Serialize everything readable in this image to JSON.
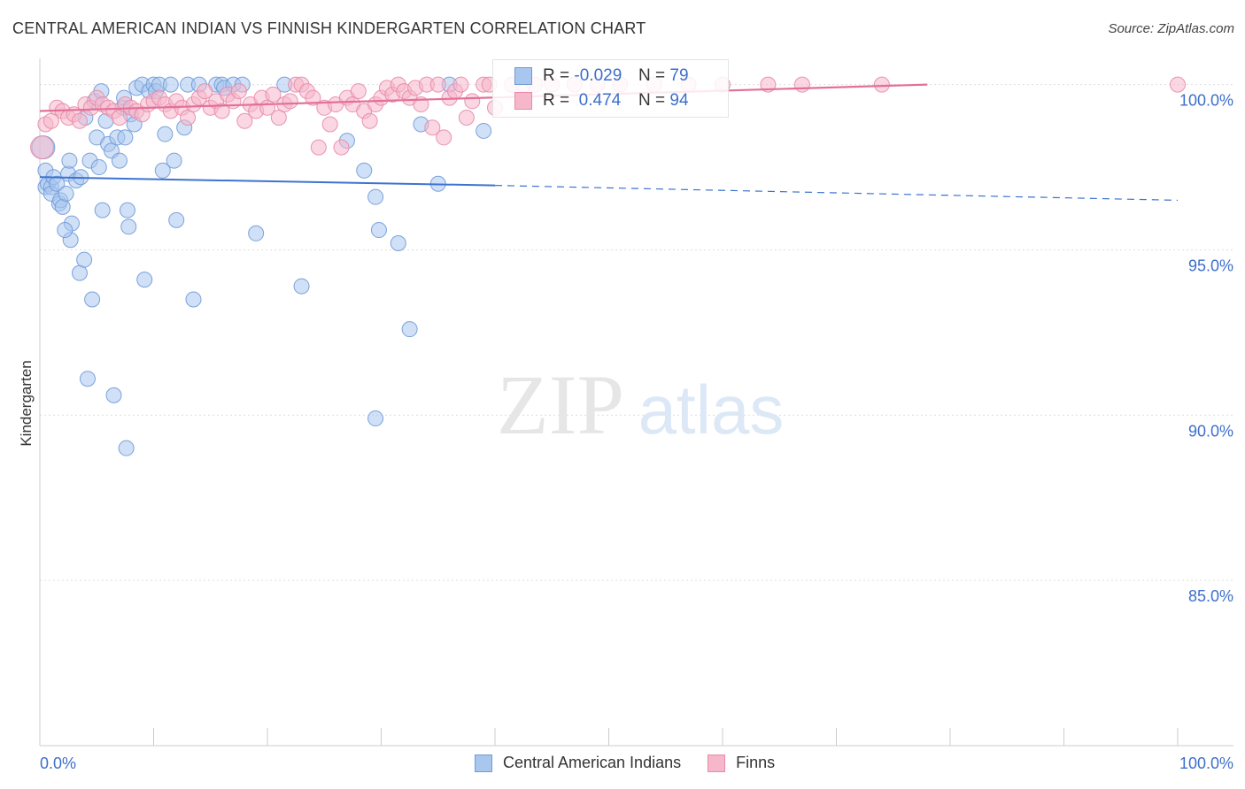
{
  "title": "CENTRAL AMERICAN INDIAN VS FINNISH KINDERGARTEN CORRELATION CHART",
  "source": "Source: ZipAtlas.com",
  "watermark": {
    "zip": "ZIP",
    "atlas": "atlas"
  },
  "colors": {
    "blue_fill": "#a9c6ef",
    "blue_stroke": "#6f9ad8",
    "blue_line": "#3d73d0",
    "pink_fill": "#f6b7cb",
    "pink_stroke": "#e88aa8",
    "pink_line": "#e2709a",
    "tick_label": "#3d6fcc",
    "grid": "#dddddd"
  },
  "legend_stats": [
    {
      "r_label": "R =",
      "r_value": "-0.029",
      "n_label": "N =",
      "n_value": "79"
    },
    {
      "r_label": "R =",
      "r_value": "0.474",
      "n_label": "N =",
      "n_value": "94"
    }
  ],
  "chart_data": {
    "type": "scatter",
    "ylabel": "Kindergarten",
    "x_tick_labels": [
      "0.0%",
      "100.0%"
    ],
    "y_tick_labels": [
      "100.0%",
      "95.0%",
      "90.0%",
      "85.0%"
    ],
    "xlim": [
      0,
      100
    ],
    "ylim": [
      80.0,
      100.9
    ],
    "y_ticks": [
      100,
      95,
      90,
      85
    ],
    "series": [
      {
        "name": "Central American Indians",
        "trend": {
          "x0": 0,
          "y0": 97.2,
          "x1": 40,
          "y1": 96.95,
          "x_end": 100,
          "y_end": 96.5
        },
        "points": [
          [
            0.3,
            98.1
          ],
          [
            0.5,
            97.4
          ],
          [
            0.5,
            96.9
          ],
          [
            0.7,
            97.0
          ],
          [
            1.0,
            96.9
          ],
          [
            1.0,
            96.7
          ],
          [
            1.2,
            97.2
          ],
          [
            1.5,
            97.0
          ],
          [
            1.7,
            96.4
          ],
          [
            1.8,
            96.5
          ],
          [
            2.0,
            96.3
          ],
          [
            2.3,
            96.7
          ],
          [
            2.5,
            97.3
          ],
          [
            2.6,
            97.7
          ],
          [
            2.7,
            95.3
          ],
          [
            2.8,
            95.8
          ],
          [
            2.2,
            95.6
          ],
          [
            3.2,
            97.1
          ],
          [
            3.6,
            97.2
          ],
          [
            3.5,
            94.3
          ],
          [
            3.9,
            94.7
          ],
          [
            4.0,
            99.0
          ],
          [
            4.2,
            91.1
          ],
          [
            4.4,
            97.7
          ],
          [
            4.6,
            93.5
          ],
          [
            4.8,
            99.5
          ],
          [
            5.0,
            98.4
          ],
          [
            5.2,
            97.5
          ],
          [
            5.4,
            99.8
          ],
          [
            5.5,
            96.2
          ],
          [
            5.8,
            98.9
          ],
          [
            6.0,
            98.2
          ],
          [
            6.3,
            98.0
          ],
          [
            6.5,
            90.6
          ],
          [
            6.8,
            98.4
          ],
          [
            7.0,
            97.7
          ],
          [
            7.3,
            99.3
          ],
          [
            7.5,
            98.4
          ],
          [
            7.7,
            96.2
          ],
          [
            7.4,
            99.6
          ],
          [
            7.6,
            89.0
          ],
          [
            7.8,
            95.7
          ],
          [
            8.0,
            99.1
          ],
          [
            8.3,
            98.8
          ],
          [
            8.5,
            99.9
          ],
          [
            9.0,
            100.0
          ],
          [
            9.2,
            94.1
          ],
          [
            9.6,
            99.8
          ],
          [
            10.0,
            100.0
          ],
          [
            10.2,
            99.8
          ],
          [
            10.5,
            100.0
          ],
          [
            10.8,
            97.4
          ],
          [
            11.0,
            98.5
          ],
          [
            11.5,
            100.0
          ],
          [
            11.8,
            97.7
          ],
          [
            12.0,
            95.9
          ],
          [
            12.7,
            98.7
          ],
          [
            13.0,
            100.0
          ],
          [
            13.5,
            93.5
          ],
          [
            14.0,
            100.0
          ],
          [
            15.5,
            100.0
          ],
          [
            16.0,
            100.0
          ],
          [
            16.2,
            99.9
          ],
          [
            17.0,
            100.0
          ],
          [
            17.8,
            100.0
          ],
          [
            19.0,
            95.5
          ],
          [
            21.5,
            100.0
          ],
          [
            23.0,
            93.9
          ],
          [
            27.0,
            98.3
          ],
          [
            28.5,
            97.4
          ],
          [
            29.5,
            89.9
          ],
          [
            29.5,
            96.6
          ],
          [
            29.8,
            95.6
          ],
          [
            31.5,
            95.2
          ],
          [
            32.5,
            92.6
          ],
          [
            33.5,
            98.8
          ],
          [
            35.0,
            97.0
          ],
          [
            36.0,
            100.0
          ],
          [
            39.0,
            98.6
          ]
        ]
      },
      {
        "name": "Finns",
        "trend": {
          "x0": 0,
          "y0": 99.2,
          "x1": 78,
          "y1": 100.0
        },
        "points": [
          [
            0.2,
            98.1
          ],
          [
            0.5,
            98.8
          ],
          [
            1.0,
            98.9
          ],
          [
            1.5,
            99.3
          ],
          [
            2.0,
            99.2
          ],
          [
            2.5,
            99.0
          ],
          [
            3.0,
            99.1
          ],
          [
            3.5,
            98.9
          ],
          [
            4.0,
            99.4
          ],
          [
            4.5,
            99.3
          ],
          [
            5.0,
            99.6
          ],
          [
            5.5,
            99.4
          ],
          [
            6.0,
            99.3
          ],
          [
            6.5,
            99.2
          ],
          [
            7.0,
            99.0
          ],
          [
            7.5,
            99.4
          ],
          [
            8.0,
            99.3
          ],
          [
            8.5,
            99.2
          ],
          [
            9.0,
            99.1
          ],
          [
            9.5,
            99.4
          ],
          [
            10.0,
            99.5
          ],
          [
            10.5,
            99.6
          ],
          [
            11.0,
            99.4
          ],
          [
            11.5,
            99.2
          ],
          [
            12.0,
            99.5
          ],
          [
            12.5,
            99.3
          ],
          [
            13.0,
            99.0
          ],
          [
            13.5,
            99.4
          ],
          [
            14.0,
            99.6
          ],
          [
            14.5,
            99.8
          ],
          [
            15.0,
            99.3
          ],
          [
            15.5,
            99.5
          ],
          [
            16.0,
            99.2
          ],
          [
            16.5,
            99.7
          ],
          [
            17.0,
            99.5
          ],
          [
            17.5,
            99.8
          ],
          [
            18.0,
            98.9
          ],
          [
            18.5,
            99.4
          ],
          [
            19.0,
            99.2
          ],
          [
            19.5,
            99.6
          ],
          [
            20.0,
            99.3
          ],
          [
            20.5,
            99.7
          ],
          [
            21.0,
            99.0
          ],
          [
            21.5,
            99.4
          ],
          [
            22.0,
            99.5
          ],
          [
            22.5,
            100.0
          ],
          [
            23.0,
            100.0
          ],
          [
            23.5,
            99.8
          ],
          [
            24.0,
            99.6
          ],
          [
            24.5,
            98.1
          ],
          [
            25.0,
            99.3
          ],
          [
            25.5,
            98.8
          ],
          [
            26.0,
            99.4
          ],
          [
            26.5,
            98.1
          ],
          [
            27.0,
            99.6
          ],
          [
            27.5,
            99.4
          ],
          [
            28.0,
            99.8
          ],
          [
            28.5,
            99.2
          ],
          [
            29.0,
            98.9
          ],
          [
            29.5,
            99.4
          ],
          [
            30.0,
            99.6
          ],
          [
            30.5,
            99.9
          ],
          [
            31.0,
            99.7
          ],
          [
            31.5,
            100.0
          ],
          [
            32.0,
            99.8
          ],
          [
            32.5,
            99.6
          ],
          [
            33.0,
            99.9
          ],
          [
            33.5,
            99.4
          ],
          [
            34.0,
            100.0
          ],
          [
            34.5,
            98.7
          ],
          [
            35.0,
            100.0
          ],
          [
            35.5,
            98.4
          ],
          [
            36.0,
            99.6
          ],
          [
            36.5,
            99.8
          ],
          [
            37.0,
            100.0
          ],
          [
            37.5,
            99.0
          ],
          [
            38.0,
            99.5
          ],
          [
            39.0,
            100.0
          ],
          [
            39.5,
            100.0
          ],
          [
            40.0,
            99.3
          ],
          [
            41.5,
            100.0
          ],
          [
            42.5,
            100.0
          ],
          [
            43.5,
            100.0
          ],
          [
            45.0,
            100.0
          ],
          [
            47.0,
            100.0
          ],
          [
            49.0,
            100.0
          ],
          [
            51.0,
            100.0
          ],
          [
            54.0,
            100.0
          ],
          [
            57.0,
            100.0
          ],
          [
            60.0,
            100.0
          ],
          [
            64.0,
            100.0
          ],
          [
            67.0,
            100.0
          ],
          [
            74.0,
            100.0
          ],
          [
            100.0,
            100.0
          ]
        ]
      }
    ]
  },
  "legend_bottom": [
    "Central American Indians",
    "Finns"
  ]
}
